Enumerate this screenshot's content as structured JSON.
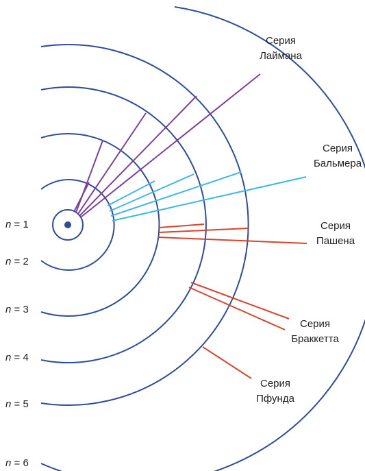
{
  "levels": [
    {
      "symbol": "n",
      "text": "= 1"
    },
    {
      "symbol": "n",
      "text": "= 2"
    },
    {
      "symbol": "n",
      "text": "= 3"
    },
    {
      "symbol": "n",
      "text": "= 4"
    },
    {
      "symbol": "n",
      "text": "= 5"
    },
    {
      "symbol": "n",
      "text": "= 6"
    }
  ],
  "series": [
    {
      "line1": "Серия",
      "line2": "Лаймана"
    },
    {
      "line1": "Серия",
      "line2": "Бальмера"
    },
    {
      "line1": "Серия",
      "line2": "Пашена"
    },
    {
      "line1": "Серия",
      "line2": "Браккетта"
    },
    {
      "line1": "Серия",
      "line2": "Пфунда"
    }
  ]
}
